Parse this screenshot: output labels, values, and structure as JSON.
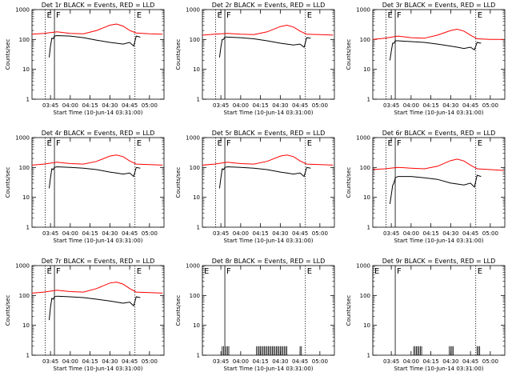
{
  "colors": {
    "events": "#000000",
    "lld": "#ff0000",
    "background": "#ffffff"
  },
  "common": {
    "ylabel": "Counts/sec",
    "xlabel": "Start Time (10-Jun-14 03:31:00)",
    "x_ticks": [
      "03:45",
      "04:00",
      "04:15",
      "04:30",
      "04:45",
      "05:00"
    ],
    "y_ticks": [
      "1",
      "10",
      "100",
      "1000"
    ],
    "y_scale": "log",
    "ylim": [
      1,
      1000
    ],
    "xlim": [
      "03:31",
      "05:11"
    ]
  },
  "chart_data": [
    {
      "type": "line",
      "title": "Det 1r BLACK = Events, RED = LLD",
      "markers": [
        {
          "label": "E",
          "time": "03:41",
          "style": "dotted"
        },
        {
          "label": "F",
          "time": "03:48",
          "style": "solid"
        },
        {
          "label": "E",
          "time": "04:49",
          "style": "dotted"
        }
      ],
      "series": [
        {
          "name": "Events",
          "color": "#000000",
          "x": [
            "03:44",
            "03:45",
            "03:46",
            "03:47",
            "03:48",
            "03:50",
            "04:00",
            "04:10",
            "04:20",
            "04:30",
            "04:35",
            "04:40",
            "04:45",
            "04:48",
            "04:50",
            "04:53"
          ],
          "y": [
            25,
            60,
            110,
            105,
            130,
            135,
            130,
            115,
            95,
            80,
            75,
            70,
            80,
            60,
            130,
            120
          ]
        },
        {
          "name": "LLD",
          "color": "#ff0000",
          "x": [
            "03:31",
            "03:40",
            "03:50",
            "04:00",
            "04:10",
            "04:20",
            "04:30",
            "04:35",
            "04:40",
            "04:45",
            "04:50",
            "05:00",
            "05:10"
          ],
          "y": [
            150,
            160,
            180,
            160,
            155,
            200,
            300,
            330,
            280,
            200,
            165,
            155,
            150
          ]
        }
      ]
    },
    {
      "type": "line",
      "title": "Det 2r BLACK = Events, RED = LLD",
      "markers": [
        {
          "label": "E",
          "time": "03:41",
          "style": "dotted"
        },
        {
          "label": "F",
          "time": "03:48",
          "style": "solid"
        },
        {
          "label": "E",
          "time": "04:49",
          "style": "dotted"
        }
      ],
      "series": [
        {
          "name": "Events",
          "color": "#000000",
          "x": [
            "03:44",
            "03:45",
            "03:46",
            "03:47",
            "03:48",
            "03:50",
            "04:00",
            "04:10",
            "04:20",
            "04:30",
            "04:35",
            "04:40",
            "04:45",
            "04:48",
            "04:50",
            "04:53"
          ],
          "y": [
            25,
            55,
            100,
            100,
            120,
            120,
            115,
            105,
            90,
            75,
            70,
            65,
            70,
            55,
            115,
            110
          ]
        },
        {
          "name": "LLD",
          "color": "#ff0000",
          "x": [
            "03:31",
            "03:40",
            "03:50",
            "04:00",
            "04:10",
            "04:20",
            "04:30",
            "04:35",
            "04:40",
            "04:45",
            "04:50",
            "05:00",
            "05:10"
          ],
          "y": [
            140,
            150,
            160,
            150,
            145,
            180,
            270,
            300,
            260,
            190,
            150,
            145,
            140
          ]
        }
      ]
    },
    {
      "type": "line",
      "title": "Det 3r BLACK = Events, RED = LLD",
      "markers": [
        {
          "label": "E",
          "time": "03:41",
          "style": "dotted"
        },
        {
          "label": "F",
          "time": "03:48",
          "style": "solid"
        },
        {
          "label": "E",
          "time": "04:49",
          "style": "dotted"
        }
      ],
      "series": [
        {
          "name": "Events",
          "color": "#000000",
          "x": [
            "03:44",
            "03:45",
            "03:46",
            "03:47",
            "03:48",
            "03:50",
            "04:00",
            "04:10",
            "04:20",
            "04:30",
            "04:35",
            "04:40",
            "04:45",
            "04:48",
            "04:50",
            "04:53"
          ],
          "y": [
            20,
            40,
            75,
            75,
            90,
            90,
            85,
            80,
            70,
            60,
            55,
            50,
            55,
            45,
            80,
            75
          ]
        },
        {
          "name": "LLD",
          "color": "#ff0000",
          "x": [
            "03:31",
            "03:40",
            "03:50",
            "04:00",
            "04:10",
            "04:20",
            "04:30",
            "04:35",
            "04:40",
            "04:45",
            "04:50",
            "05:00",
            "05:10"
          ],
          "y": [
            100,
            110,
            130,
            115,
            110,
            140,
            200,
            220,
            190,
            140,
            105,
            100,
            100
          ]
        }
      ]
    },
    {
      "type": "line",
      "title": "Det 4r BLACK = Events, RED = LLD",
      "markers": [
        {
          "label": "E",
          "time": "03:41",
          "style": "dotted"
        },
        {
          "label": "F",
          "time": "03:48",
          "style": "solid"
        },
        {
          "label": "E",
          "time": "04:49",
          "style": "dotted"
        }
      ],
      "series": [
        {
          "name": "Events",
          "color": "#000000",
          "x": [
            "03:44",
            "03:45",
            "03:46",
            "03:47",
            "03:48",
            "03:50",
            "04:00",
            "04:10",
            "04:20",
            "04:30",
            "04:35",
            "04:40",
            "04:45",
            "04:48",
            "04:50",
            "04:53"
          ],
          "y": [
            20,
            45,
            90,
            85,
            100,
            105,
            100,
            95,
            85,
            70,
            65,
            60,
            65,
            50,
            100,
            95
          ]
        },
        {
          "name": "LLD",
          "color": "#ff0000",
          "x": [
            "03:31",
            "03:40",
            "03:50",
            "04:00",
            "04:10",
            "04:20",
            "04:30",
            "04:35",
            "04:40",
            "04:45",
            "04:50",
            "05:00",
            "05:10"
          ],
          "y": [
            120,
            130,
            150,
            135,
            130,
            160,
            240,
            260,
            230,
            165,
            130,
            125,
            120
          ]
        }
      ]
    },
    {
      "type": "line",
      "title": "Det 5r BLACK = Events, RED = LLD",
      "markers": [
        {
          "label": "E",
          "time": "03:41",
          "style": "dotted"
        },
        {
          "label": "F",
          "time": "03:48",
          "style": "solid"
        },
        {
          "label": "E",
          "time": "04:49",
          "style": "dotted"
        }
      ],
      "series": [
        {
          "name": "Events",
          "color": "#000000",
          "x": [
            "03:44",
            "03:45",
            "03:46",
            "03:47",
            "03:48",
            "03:50",
            "04:00",
            "04:10",
            "04:20",
            "04:30",
            "04:35",
            "04:40",
            "04:45",
            "04:48",
            "04:50",
            "04:53"
          ],
          "y": [
            20,
            45,
            90,
            85,
            100,
            105,
            100,
            95,
            85,
            70,
            65,
            60,
            65,
            50,
            100,
            95
          ]
        },
        {
          "name": "LLD",
          "color": "#ff0000",
          "x": [
            "03:31",
            "03:40",
            "03:50",
            "04:00",
            "04:10",
            "04:20",
            "04:30",
            "04:35",
            "04:40",
            "04:45",
            "04:50",
            "05:00",
            "05:10"
          ],
          "y": [
            120,
            130,
            150,
            135,
            130,
            160,
            240,
            260,
            230,
            165,
            130,
            125,
            120
          ]
        }
      ]
    },
    {
      "type": "line",
      "title": "Det 6r BLACK = Events, RED = LLD",
      "markers": [
        {
          "label": "E",
          "time": "03:41",
          "style": "dotted"
        },
        {
          "label": "F",
          "time": "03:48",
          "style": "solid"
        },
        {
          "label": "E",
          "time": "04:49",
          "style": "dotted"
        }
      ],
      "series": [
        {
          "name": "Events",
          "color": "#000000",
          "x": [
            "03:44",
            "03:45",
            "03:46",
            "03:47",
            "03:48",
            "03:50",
            "04:00",
            "04:10",
            "04:20",
            "04:30",
            "04:35",
            "04:40",
            "04:45",
            "04:48",
            "04:50",
            "04:53"
          ],
          "y": [
            6,
            12,
            25,
            30,
            45,
            50,
            50,
            45,
            40,
            30,
            28,
            26,
            30,
            22,
            55,
            50
          ]
        },
        {
          "name": "LLD",
          "color": "#ff0000",
          "x": [
            "03:31",
            "03:40",
            "03:50",
            "04:00",
            "04:10",
            "04:20",
            "04:30",
            "04:35",
            "04:40",
            "04:45",
            "04:50",
            "05:00",
            "05:10"
          ],
          "y": [
            85,
            90,
            100,
            95,
            90,
            110,
            170,
            190,
            165,
            120,
            90,
            85,
            80
          ]
        }
      ]
    },
    {
      "type": "line",
      "title": "Det 7r BLACK = Events, RED = LLD",
      "markers": [
        {
          "label": "E",
          "time": "03:41",
          "style": "dotted"
        },
        {
          "label": "F",
          "time": "03:48",
          "style": "solid"
        },
        {
          "label": "E",
          "time": "04:49",
          "style": "dotted"
        }
      ],
      "series": [
        {
          "name": "Events",
          "color": "#000000",
          "x": [
            "03:44",
            "03:45",
            "03:46",
            "03:47",
            "03:48",
            "03:50",
            "04:00",
            "04:10",
            "04:20",
            "04:30",
            "04:35",
            "04:40",
            "04:45",
            "04:48",
            "04:50",
            "04:53"
          ],
          "y": [
            15,
            40,
            80,
            75,
            90,
            95,
            90,
            85,
            75,
            65,
            60,
            55,
            60,
            45,
            90,
            85
          ]
        },
        {
          "name": "LLD",
          "color": "#ff0000",
          "x": [
            "03:31",
            "03:40",
            "03:50",
            "04:00",
            "04:10",
            "04:20",
            "04:30",
            "04:35",
            "04:40",
            "04:45",
            "04:50",
            "05:00",
            "05:10"
          ],
          "y": [
            120,
            130,
            150,
            135,
            130,
            170,
            260,
            280,
            240,
            170,
            130,
            125,
            120
          ]
        }
      ]
    },
    {
      "type": "spikes",
      "title": "Det 8r BLACK = Events, RED = LLD",
      "markers": [
        {
          "label": "E",
          "time": "03:31",
          "style": "dotted"
        },
        {
          "label": "F",
          "time": "03:48",
          "style": "solid"
        },
        {
          "label": "E",
          "time": "04:49",
          "style": "dotted"
        }
      ],
      "spike_value": 2,
      "spike_times": [
        "03:46",
        "03:47",
        "03:49",
        "03:50",
        "03:51",
        "04:12",
        "04:13",
        "04:14",
        "04:15",
        "04:16",
        "04:17",
        "04:18",
        "04:19",
        "04:20",
        "04:21",
        "04:22",
        "04:23",
        "04:24",
        "04:25",
        "04:26",
        "04:27",
        "04:28",
        "04:29",
        "04:30",
        "04:31",
        "04:32",
        "04:33",
        "04:34",
        "04:35",
        "04:45",
        "04:46"
      ]
    },
    {
      "type": "spikes",
      "title": "Det 9r BLACK = Events, RED = LLD",
      "markers": [
        {
          "label": "E",
          "time": "03:31",
          "style": "dotted"
        },
        {
          "label": "F",
          "time": "03:48",
          "style": "solid"
        },
        {
          "label": "E",
          "time": "04:49",
          "style": "dotted"
        }
      ],
      "spike_value": 2,
      "spike_times": [
        "04:02",
        "04:03",
        "04:04",
        "04:05",
        "04:06",
        "04:07",
        "04:08",
        "04:29",
        "04:30",
        "04:31",
        "04:32",
        "04:50",
        "04:51",
        "04:52"
      ]
    }
  ]
}
